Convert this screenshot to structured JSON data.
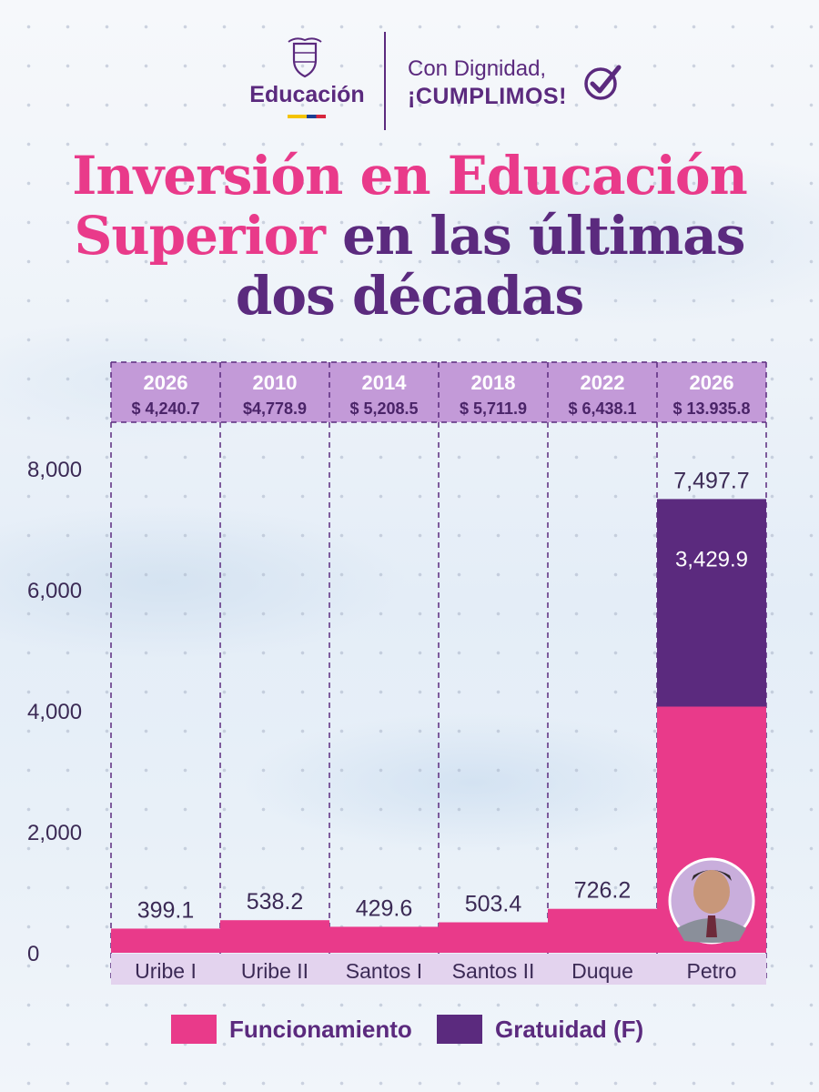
{
  "header": {
    "brand": "Educación",
    "slogan_line1": "Con Dignidad,",
    "slogan_line2": "¡CUMPLIMOS!"
  },
  "title": {
    "part1_pink": "Inversión en Educación",
    "part2_pink": "Superior",
    "part2_purple": " en las últimas",
    "part3_purple": "dos décadas"
  },
  "colors": {
    "funcionamiento": "#e93a8a",
    "gratuidad": "#5b2a7e",
    "header_fill": "#c39ad8",
    "label_fill": "#e3d3ee"
  },
  "chart_data": {
    "type": "bar",
    "stacked": true,
    "categories": [
      "Uribe I",
      "Uribe II",
      "Santos I",
      "Santos II",
      "Duque",
      "Petro"
    ],
    "column_headers": [
      {
        "year": "2026",
        "total": "$ 4,240.7"
      },
      {
        "year": "2010",
        "total": "$4,778.9"
      },
      {
        "year": "2014",
        "total": "$ 5,208.5"
      },
      {
        "year": "2018",
        "total": "$ 5,711.9"
      },
      {
        "year": "2022",
        "total": "$ 6,438.1"
      },
      {
        "year": "2026",
        "total": "$ 13.935.8"
      }
    ],
    "series": [
      {
        "name": "Funcionamiento",
        "values": [
          399.1,
          538.2,
          429.6,
          503.4,
          726.2,
          4067.8
        ]
      },
      {
        "name": "Gratuidad (F)",
        "values": [
          0,
          0,
          0,
          0,
          0,
          3429.9
        ]
      }
    ],
    "data_labels": [
      "399.1",
      "538.2",
      "429.6",
      "503.4",
      "726.2",
      "7,497.7"
    ],
    "inner_label": "3,429.9",
    "y_ticks": [
      "0",
      "2,000",
      "4,000",
      "6,000",
      "8,000"
    ],
    "y_tick_values": [
      0,
      2000,
      4000,
      6000,
      8000
    ],
    "ylim": [
      0,
      8000
    ],
    "legend": [
      "Funcionamiento",
      "Gratuidad (F)"
    ],
    "legend_position": "bottom",
    "grid": false
  }
}
